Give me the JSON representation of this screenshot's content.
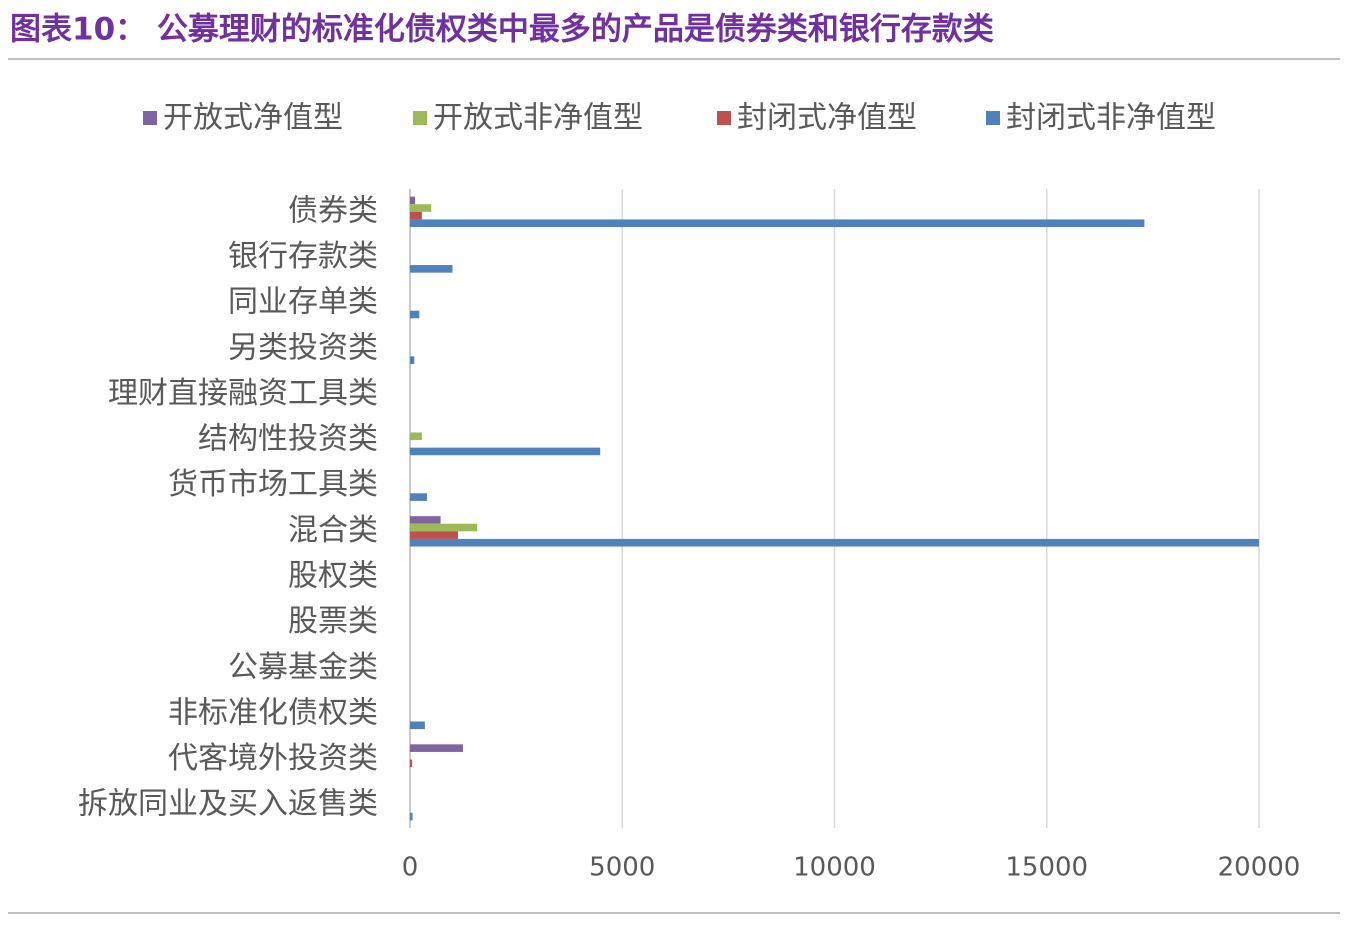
{
  "chart_data": {
    "type": "hbar",
    "title": "图表10： 公募理财的标准化债权类中最多的产品是债券类和银行存款类",
    "categories": [
      "债券类",
      "银行存款类",
      "同业存单类",
      "另类投资类",
      "理财直接融资工具类",
      "结构性投资类",
      "货币市场工具类",
      "混合类",
      "股权类",
      "股票类",
      "公募基金类",
      "非标准化债权类",
      "代客境外投资类",
      "拆放同业及买入返售类"
    ],
    "series": [
      {
        "name": "开放式净值型",
        "color": "#8064a2",
        "values": [
          120,
          0,
          0,
          0,
          0,
          0,
          0,
          720,
          0,
          0,
          0,
          0,
          1250,
          0
        ]
      },
      {
        "name": "开放式非净值型",
        "color": "#9bbb59",
        "values": [
          500,
          0,
          0,
          0,
          0,
          280,
          0,
          1580,
          0,
          0,
          0,
          0,
          0,
          0
        ]
      },
      {
        "name": "封闭式净值型",
        "color": "#c0504d",
        "values": [
          280,
          0,
          0,
          0,
          0,
          0,
          0,
          1130,
          0,
          0,
          0,
          0,
          50,
          0
        ]
      },
      {
        "name": "封闭式非净值型",
        "color": "#4f81bd",
        "values": [
          17300,
          1000,
          220,
          100,
          0,
          4480,
          400,
          20000,
          0,
          0,
          0,
          350,
          0,
          60
        ]
      }
    ],
    "xlim": [
      0,
      20000
    ],
    "xticks": [
      0,
      5000,
      10000,
      15000,
      20000
    ],
    "grid": true,
    "legend": "top"
  }
}
